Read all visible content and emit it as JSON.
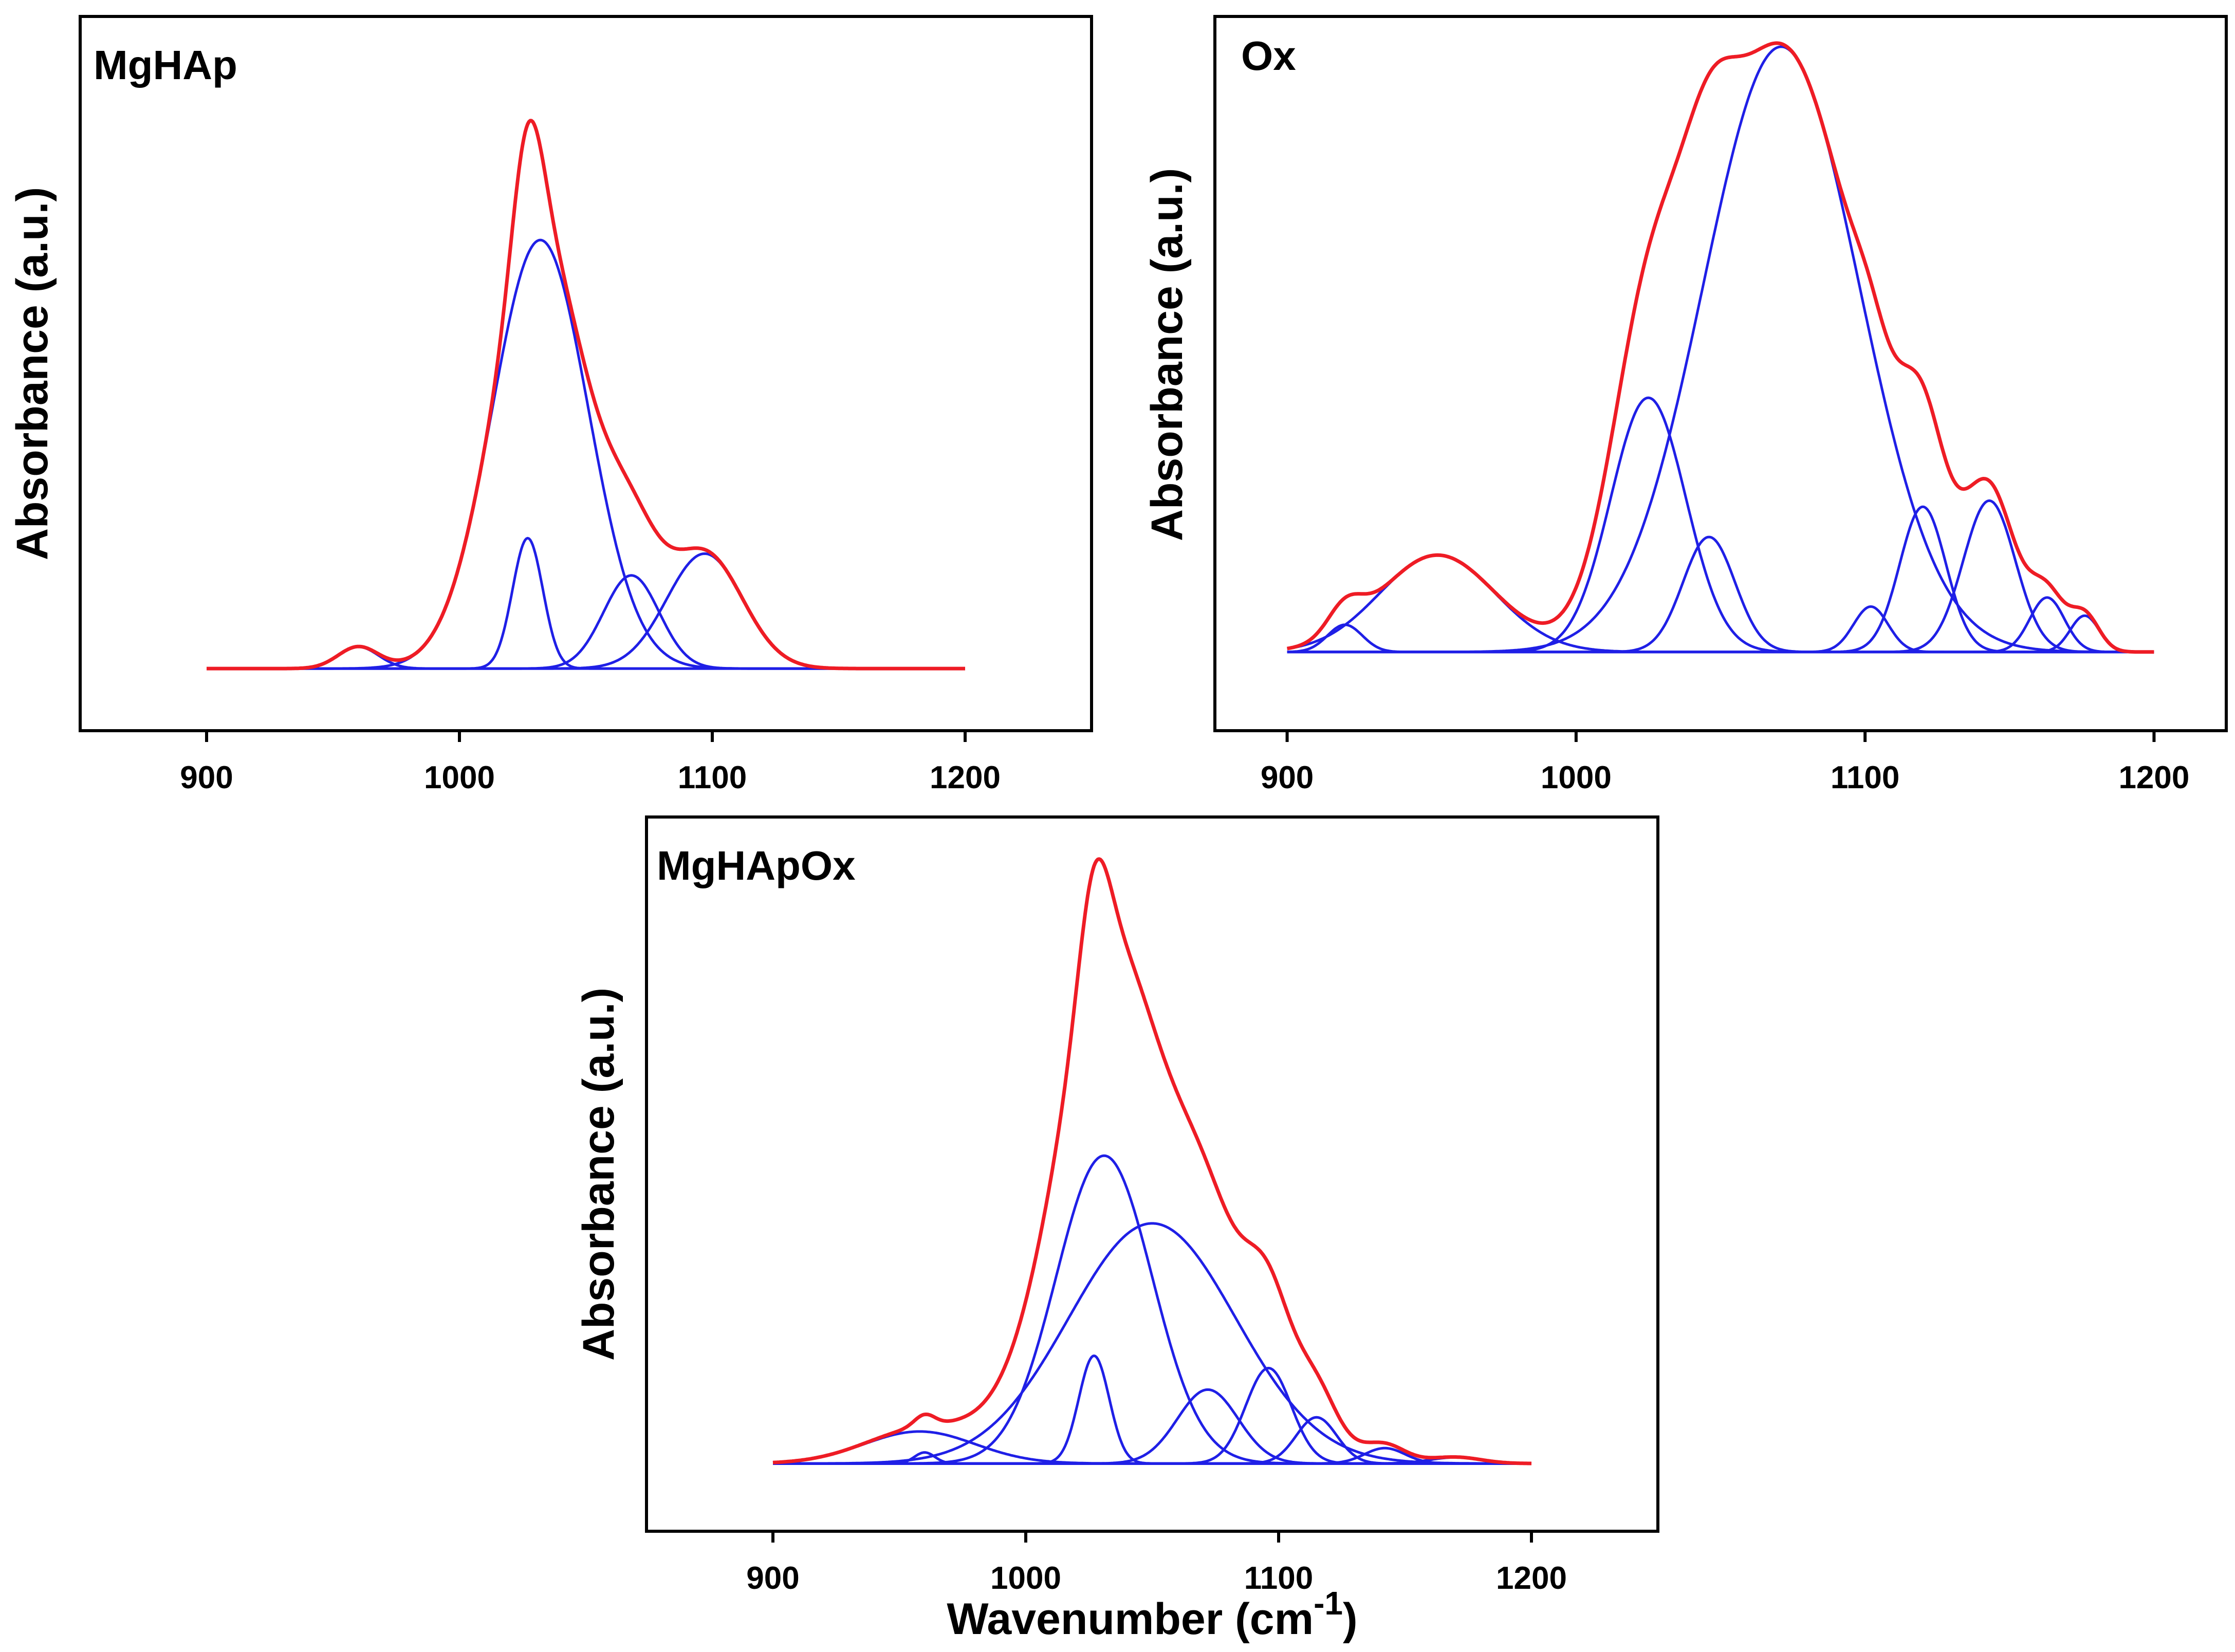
{
  "colors": {
    "envelope": "#ee1c25",
    "components": "#1f1fe6",
    "axes": "#000000"
  },
  "x_axis_label": {
    "main": "Wavenumber (cm",
    "superscript": "-1",
    "close": ")"
  },
  "chart_data": [
    {
      "type": "line",
      "title": "MgHAp",
      "ylabel": "Absorbance (a.u.)",
      "xlabel": "",
      "xlim": [
        850,
        1250
      ],
      "ylim": [
        -0.1,
        1.05
      ],
      "xticks": [
        900,
        1000,
        1100,
        1200
      ],
      "x_range": [
        900,
        1200
      ],
      "grid": false,
      "envelope_color": "red",
      "components_color": "blue",
      "components": [
        {
          "center": 960,
          "height": 0.035,
          "width": 8
        },
        {
          "center": 1027,
          "height": 0.21,
          "width": 6
        },
        {
          "center": 1032,
          "height": 0.69,
          "width": 19
        },
        {
          "center": 1068,
          "height": 0.15,
          "width": 11
        },
        {
          "center": 1097,
          "height": 0.185,
          "width": 15
        }
      ]
    },
    {
      "type": "line",
      "title": "Ox",
      "ylabel": "Absorbance (a.u.)",
      "xlabel": "",
      "xlim": [
        875,
        1225
      ],
      "ylim": [
        -0.13,
        1.05
      ],
      "xticks": [
        900,
        1000,
        1100,
        1200
      ],
      "x_range": [
        900,
        1200
      ],
      "grid": false,
      "envelope_color": "red",
      "components_color": "blue",
      "components": [
        {
          "center": 920,
          "height": 0.045,
          "width": 6
        },
        {
          "center": 952,
          "height": 0.16,
          "width": 20
        },
        {
          "center": 1025,
          "height": 0.42,
          "width": 13
        },
        {
          "center": 1046,
          "height": 0.19,
          "width": 9
        },
        {
          "center": 1071,
          "height": 1.0,
          "width": 27
        },
        {
          "center": 1102,
          "height": 0.075,
          "width": 6
        },
        {
          "center": 1120,
          "height": 0.24,
          "width": 8
        },
        {
          "center": 1143,
          "height": 0.25,
          "width": 9
        },
        {
          "center": 1163,
          "height": 0.09,
          "width": 6
        },
        {
          "center": 1176,
          "height": 0.06,
          "width": 5
        }
      ]
    },
    {
      "type": "line",
      "title": "MgHApOx",
      "ylabel": "Absorbance (a.u.)",
      "xlabel": "Wavenumber (cm-1)",
      "xlim": [
        850,
        1250
      ],
      "ylim": [
        -0.11,
        1.05
      ],
      "xticks": [
        900,
        1000,
        1100,
        1200
      ],
      "x_range": [
        900,
        1200
      ],
      "grid": false,
      "envelope_color": "red",
      "components_color": "blue",
      "components": [
        {
          "center": 958,
          "height": 0.052,
          "width": 22
        },
        {
          "center": 960,
          "height": 0.018,
          "width": 4
        },
        {
          "center": 1027,
          "height": 0.175,
          "width": 6
        },
        {
          "center": 1031,
          "height": 0.5,
          "width": 19
        },
        {
          "center": 1050,
          "height": 0.39,
          "width": 33
        },
        {
          "center": 1072,
          "height": 0.12,
          "width": 12
        },
        {
          "center": 1096,
          "height": 0.155,
          "width": 9
        },
        {
          "center": 1115,
          "height": 0.075,
          "width": 8
        },
        {
          "center": 1142,
          "height": 0.025,
          "width": 8
        },
        {
          "center": 1170,
          "height": 0.01,
          "width": 10
        }
      ]
    }
  ]
}
